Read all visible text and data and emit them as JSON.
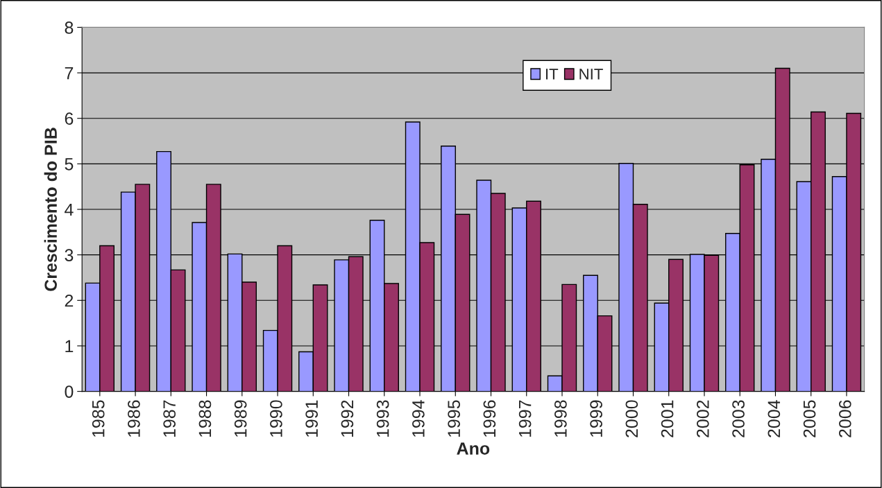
{
  "chart_data": {
    "type": "bar",
    "xlabel": "Ano",
    "ylabel": "Crescimento do PIB",
    "categories": [
      "1985",
      "1986",
      "1987",
      "1988",
      "1989",
      "1990",
      "1991",
      "1992",
      "1993",
      "1994",
      "1995",
      "1996",
      "1997",
      "1998",
      "1999",
      "2000",
      "2001",
      "2002",
      "2003",
      "2004",
      "2005",
      "2006"
    ],
    "series": [
      {
        "name": "IT",
        "color": "#9999ff",
        "values": [
          2.38,
          4.38,
          5.27,
          3.71,
          3.02,
          1.34,
          0.87,
          2.89,
          3.76,
          5.92,
          5.39,
          4.64,
          4.03,
          0.34,
          2.55,
          5.01,
          1.94,
          3.01,
          3.47,
          5.1,
          4.61,
          4.72
        ]
      },
      {
        "name": "NIT",
        "color": "#993366",
        "values": [
          3.2,
          4.55,
          2.67,
          4.55,
          2.4,
          3.2,
          2.34,
          2.96,
          2.37,
          3.27,
          3.89,
          4.35,
          4.18,
          2.35,
          1.66,
          4.11,
          2.9,
          2.99,
          4.98,
          7.1,
          6.14,
          6.11
        ]
      }
    ],
    "ylim": [
      0,
      8
    ],
    "yticks": [
      0,
      1,
      2,
      3,
      4,
      5,
      6,
      7,
      8
    ],
    "grid": "y",
    "legend": "top"
  }
}
